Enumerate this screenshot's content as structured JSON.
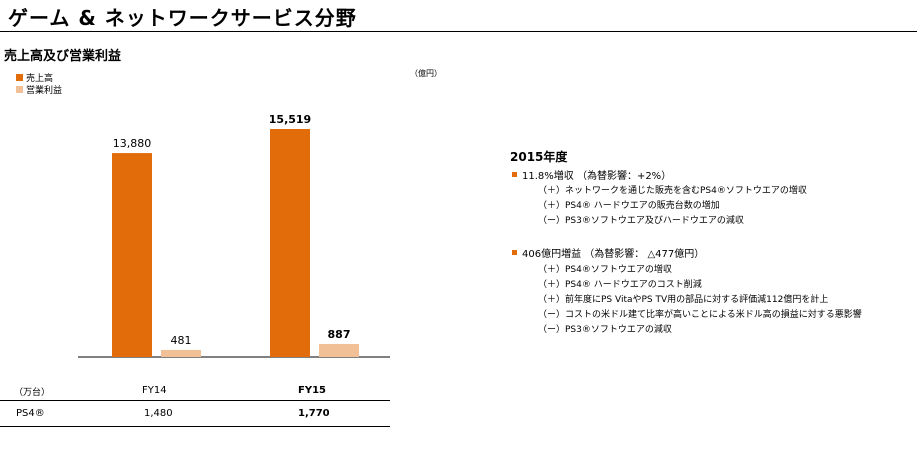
{
  "page": {
    "title": "ゲーム & ネットワークサービス分野",
    "subtitle": "売上高及び営業利益",
    "unit": "（億円）"
  },
  "colors": {
    "sales": "#e36c0a",
    "operating_income": "#f2c097",
    "notes_bullet": "#e36c0a"
  },
  "chart_data": {
    "type": "bar",
    "categories": [
      "FY14",
      "FY15"
    ],
    "series": [
      {
        "name": "売上高",
        "values": [
          13880,
          15519
        ],
        "labels": [
          "13,880",
          "15,519"
        ],
        "color": "#e36c0a"
      },
      {
        "name": "営業利益",
        "values": [
          481,
          887
        ],
        "labels": [
          "481",
          "887"
        ],
        "color": "#f2c097"
      }
    ],
    "label_bold": [
      false,
      true
    ],
    "ylim": [
      0,
      15519
    ],
    "unit": "（億円）",
    "grid": false,
    "legend_position": "top-left"
  },
  "table": {
    "unit_label": "（万台）",
    "headers": [
      "FY14",
      "FY15"
    ],
    "row_label": "PS4®",
    "values": [
      "1,480",
      "1,770"
    ]
  },
  "notes": {
    "title": "2015年度",
    "groups": [
      {
        "head": "11.8%増収 （為替影響：+2%）",
        "items": [
          "（＋）ネットワークを通じた販売を含むPS4®ソフトウエアの増収",
          "（＋）PS4® ハードウエアの販売台数の増加",
          "（ー）PS3®ソフトウエア及びハードウエアの減収"
        ]
      },
      {
        "head": "406億円増益 （為替影響： △477億円）",
        "items": [
          "（＋）PS4®ソフトウエアの増収",
          "（＋）PS4® ハードウエアのコスト削減",
          "（＋）前年度にPS VitaやPS TV用の部品に対する評価減112億円を計上",
          "（ー）コストの米ドル建て比率が高いことによる米ドル高の損益に対する悪影響",
          "（ー）PS3®ソフトウエアの減収"
        ]
      }
    ]
  }
}
